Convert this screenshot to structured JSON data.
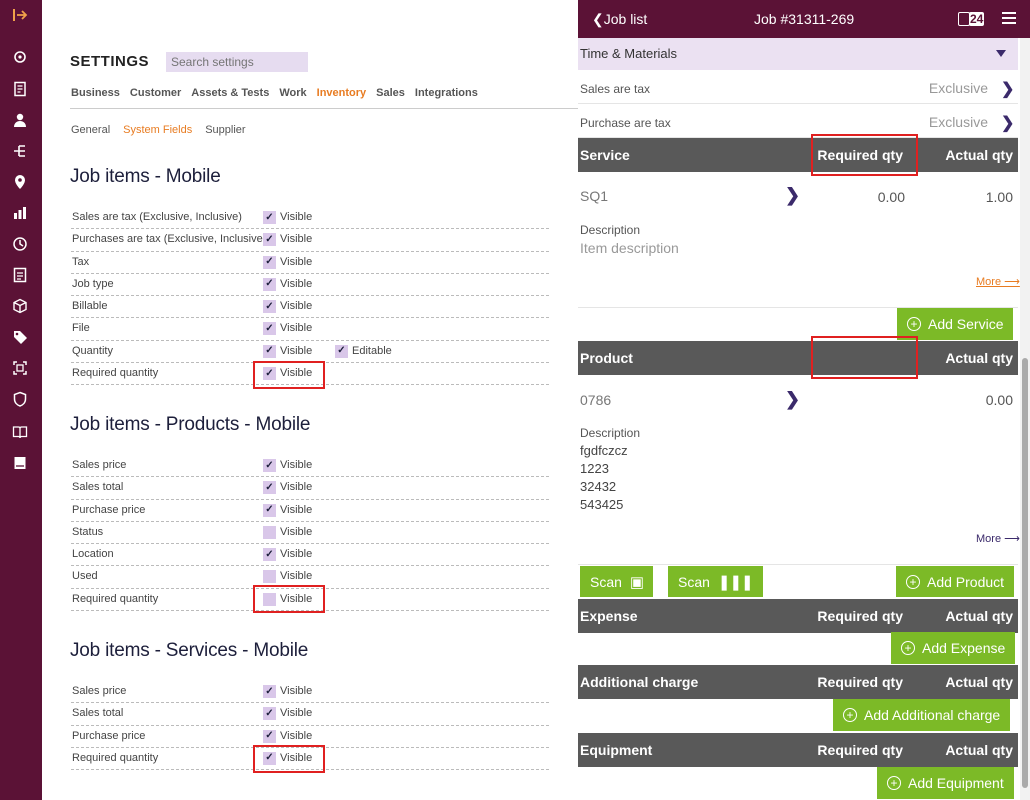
{
  "rail": {
    "icons": [
      "expand-icon",
      "location-tag-icon",
      "document-icon",
      "person-icon",
      "hierarchy-icon",
      "map-pin-icon",
      "dashboard-icon",
      "clock-icon",
      "checklist-icon",
      "cube-icon",
      "tag-icon",
      "scan-icon",
      "shield-icon",
      "book-icon",
      "notebook-icon"
    ]
  },
  "settings": {
    "title": "SETTINGS",
    "search_placeholder": "Search settings",
    "tabs": [
      {
        "label": "Business",
        "active": false
      },
      {
        "label": "Customer",
        "active": false
      },
      {
        "label": "Assets & Tests",
        "active": false
      },
      {
        "label": "Work",
        "active": false
      },
      {
        "label": "Inventory",
        "active": true
      },
      {
        "label": "Sales",
        "active": false
      },
      {
        "label": "Integrations",
        "active": false
      }
    ],
    "subtabs": [
      {
        "label": "General",
        "active": false
      },
      {
        "label": "System Fields",
        "active": true
      },
      {
        "label": "Supplier",
        "active": false
      }
    ],
    "sections": [
      {
        "title": "Job items - Mobile",
        "rows": [
          {
            "label": "Sales are tax (Exclusive, Inclusive)",
            "visible": true,
            "check_label": "Visible"
          },
          {
            "label": "Purchases are tax (Exclusive, Inclusive)",
            "visible": true,
            "check_label": "Visible"
          },
          {
            "label": "Tax",
            "visible": true,
            "check_label": "Visible"
          },
          {
            "label": "Job type",
            "visible": true,
            "check_label": "Visible"
          },
          {
            "label": "Billable",
            "visible": true,
            "check_label": "Visible"
          },
          {
            "label": "File",
            "visible": true,
            "check_label": "Visible"
          },
          {
            "label": "Quantity",
            "visible": true,
            "check_label": "Visible",
            "editable": true,
            "editable_label": "Editable"
          },
          {
            "label": "Required quantity",
            "visible": true,
            "check_label": "Visible"
          }
        ]
      },
      {
        "title": "Job items - Products - Mobile",
        "rows": [
          {
            "label": "Sales price",
            "visible": true,
            "check_label": "Visible"
          },
          {
            "label": "Sales total",
            "visible": true,
            "check_label": "Visible"
          },
          {
            "label": "Purchase price",
            "visible": true,
            "check_label": "Visible"
          },
          {
            "label": "Status",
            "visible": false,
            "check_label": "Visible"
          },
          {
            "label": "Location",
            "visible": true,
            "check_label": "Visible"
          },
          {
            "label": "Used",
            "visible": false,
            "check_label": "Visible"
          },
          {
            "label": "Required quantity",
            "visible": false,
            "check_label": "Visible"
          }
        ]
      },
      {
        "title": "Job items - Services - Mobile",
        "rows": [
          {
            "label": "Sales price",
            "visible": true,
            "check_label": "Visible"
          },
          {
            "label": "Sales total",
            "visible": true,
            "check_label": "Visible"
          },
          {
            "label": "Purchase price",
            "visible": true,
            "check_label": "Visible"
          },
          {
            "label": "Required quantity",
            "visible": true,
            "check_label": "Visible"
          }
        ]
      }
    ]
  },
  "job": {
    "back_label": "Job list",
    "title": "Job #31311-269",
    "calendar_badge": "24",
    "time_materials": "Time & Materials",
    "sales_tax_label": "Sales are tax",
    "sales_tax_value": "Exclusive",
    "purchase_tax_label": "Purchase are tax",
    "purchase_tax_value": "Exclusive",
    "service_bar": {
      "c1": "Service",
      "c2": "Required qty",
      "c3": "Actual qty"
    },
    "service_item": {
      "code": "SQ1",
      "required": "0.00",
      "actual": "1.00",
      "desc_label": "Description",
      "desc_value": "Item description",
      "more": "More ⟶"
    },
    "add_service": "Add Service",
    "product_bar": {
      "c1": "Product",
      "c2": "",
      "c3": "Actual qty"
    },
    "product_item": {
      "code": "0786",
      "actual": "0.00",
      "desc_label": "Description",
      "desc_lines": [
        "fgdfczcz",
        "1223",
        "32432",
        "543425"
      ],
      "more": "More ⟶"
    },
    "scan_label": "Scan",
    "add_product": "Add Product",
    "expense_bar": {
      "c1": "Expense",
      "c2": "Required qty",
      "c3": "Actual qty"
    },
    "add_expense": "Add Expense",
    "addl_bar": {
      "c1": "Additional charge",
      "c2": "Required qty",
      "c3": "Actual qty"
    },
    "add_addl": "Add Additional charge",
    "equip_bar": {
      "c1": "Equipment",
      "c2": "Required qty",
      "c3": "Actual qty"
    },
    "add_equip": "Add Equipment"
  },
  "colors": {
    "rail": "#5b1236",
    "accent": "#e87c22",
    "green": "#7cba27",
    "highlight": "#e02020",
    "bar": "#595959"
  }
}
